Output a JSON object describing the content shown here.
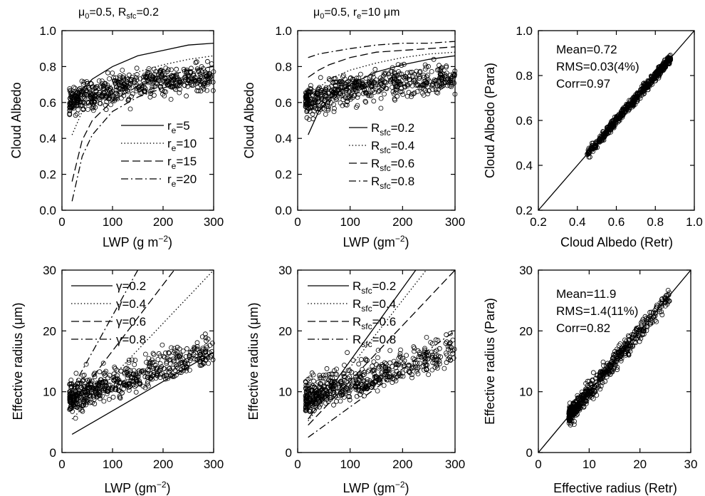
{
  "chart_data": [
    {
      "id": "a",
      "type": "scatter",
      "title": "μ0=0.5, Rsfc=0.2",
      "title_parts": {
        "mu_label": "μ",
        "mu_sub": "0",
        "mu_value": "=0.5, R",
        "r_sub": "sfc",
        "r_value": "=0.2"
      },
      "xlabel": "LWP (g m-2)",
      "xlabel_parts": {
        "text": "LWP (g m",
        "sup": "−2",
        "close": ")"
      },
      "ylabel": "Cloud Albedo",
      "xlim": [
        0,
        300
      ],
      "ylim": [
        0.0,
        1.0
      ],
      "xticks": [
        "0",
        "100",
        "200",
        "300"
      ],
      "yticks": [
        "0.0",
        "0.2",
        "0.4",
        "0.6",
        "0.8",
        "1.0"
      ],
      "legend_position": "lower-right",
      "legend": [
        {
          "prefix": "r",
          "sub": "e",
          "suffix": "=5",
          "style": "solid"
        },
        {
          "prefix": "r",
          "sub": "e",
          "suffix": "=10",
          "style": "dotted"
        },
        {
          "prefix": "r",
          "sub": "e",
          "suffix": "=15",
          "style": "dashed"
        },
        {
          "prefix": "r",
          "sub": "e",
          "suffix": "=20",
          "style": "dashdot"
        }
      ],
      "scatter_description": "LWP vs retrieved cloud albedo, approx 600 points, albedo 0.38-0.88",
      "series": [
        {
          "name": "re=5",
          "style": "solid",
          "x": [
            20,
            40,
            60,
            100,
            150,
            200,
            250,
            300
          ],
          "y": [
            0.56,
            0.67,
            0.73,
            0.8,
            0.86,
            0.89,
            0.92,
            0.93
          ]
        },
        {
          "name": "re=10",
          "style": "dotted",
          "x": [
            20,
            40,
            60,
            100,
            150,
            200,
            250,
            300
          ],
          "y": [
            0.42,
            0.55,
            0.62,
            0.7,
            0.77,
            0.81,
            0.84,
            0.86
          ]
        },
        {
          "name": "re=15",
          "style": "dashed",
          "x": [
            20,
            40,
            60,
            100,
            150,
            200,
            250,
            300
          ],
          "y": [
            0.16,
            0.39,
            0.5,
            0.61,
            0.69,
            0.74,
            0.78,
            0.8
          ]
        },
        {
          "name": "re=20",
          "style": "dashdot",
          "x": [
            20,
            40,
            60,
            100,
            150,
            200,
            250,
            300
          ],
          "y": [
            0.05,
            0.3,
            0.42,
            0.55,
            0.63,
            0.68,
            0.72,
            0.75
          ]
        }
      ]
    },
    {
      "id": "b",
      "type": "scatter",
      "title": "μ0=0.5, re=10 μm",
      "title_parts": {
        "mu_label": "μ",
        "mu_sub": "0",
        "mu_value": "=0.5, r",
        "r_sub": "e",
        "r_value": "=10 μm"
      },
      "xlabel": "LWP (gm-2)",
      "xlabel_parts": {
        "text": "LWP (gm",
        "sup": "−2",
        "close": ")"
      },
      "ylabel": "Cloud Albedo",
      "xlim": [
        0,
        300
      ],
      "ylim": [
        0.0,
        1.0
      ],
      "xticks": [
        "0",
        "100",
        "200",
        "300"
      ],
      "yticks": [
        "0.0",
        "0.2",
        "0.4",
        "0.6",
        "0.8",
        "1.0"
      ],
      "legend_position": "lower-right",
      "legend": [
        {
          "prefix": "R",
          "sub": "sfc",
          "suffix": "=0.2",
          "style": "solid"
        },
        {
          "prefix": "R",
          "sub": "sfc",
          "suffix": "=0.4",
          "style": "dotted"
        },
        {
          "prefix": "R",
          "sub": "sfc",
          "suffix": "=0.6",
          "style": "dashed"
        },
        {
          "prefix": "R",
          "sub": "sfc",
          "suffix": "=0.8",
          "style": "dashdot"
        }
      ],
      "scatter_description": "LWP vs retrieved cloud albedo, approx 600 points, albedo 0.38-0.88",
      "series": [
        {
          "name": "Rsfc=0.2",
          "style": "solid",
          "x": [
            20,
            40,
            60,
            100,
            150,
            200,
            250,
            300
          ],
          "y": [
            0.42,
            0.55,
            0.62,
            0.7,
            0.77,
            0.81,
            0.84,
            0.86
          ]
        },
        {
          "name": "Rsfc=0.4",
          "style": "dotted",
          "x": [
            20,
            40,
            60,
            100,
            150,
            200,
            250,
            300
          ],
          "y": [
            0.6,
            0.68,
            0.73,
            0.78,
            0.82,
            0.85,
            0.87,
            0.88
          ]
        },
        {
          "name": "Rsfc=0.6",
          "style": "dashed",
          "x": [
            20,
            40,
            60,
            100,
            150,
            200,
            250,
            300
          ],
          "y": [
            0.74,
            0.78,
            0.81,
            0.85,
            0.88,
            0.89,
            0.9,
            0.91
          ]
        },
        {
          "name": "Rsfc=0.8",
          "style": "dashdot",
          "x": [
            20,
            40,
            60,
            100,
            150,
            200,
            250,
            300
          ],
          "y": [
            0.85,
            0.87,
            0.88,
            0.9,
            0.92,
            0.93,
            0.93,
            0.94
          ]
        }
      ]
    },
    {
      "id": "c",
      "type": "scatter",
      "title": "",
      "xlabel": "Cloud Albedo (Retr)",
      "ylabel": "Cloud Albedo (Para)",
      "xlim": [
        0.2,
        1.0
      ],
      "ylim": [
        0.2,
        1.0
      ],
      "xticks": [
        "0.2",
        "0.4",
        "0.6",
        "0.8",
        "1.0"
      ],
      "yticks": [
        "0.2",
        "0.4",
        "0.6",
        "0.8",
        "1.0"
      ],
      "annotations": [
        "Mean=0.72",
        "RMS=0.03(4%)",
        "Corr=0.97"
      ],
      "reference_line": "1:1",
      "scatter_description": "Parameterized vs retrieved albedo along 1:1 line, 0.31-0.88"
    },
    {
      "id": "d",
      "type": "scatter",
      "title": "",
      "xlabel": "LWP (gm-2)",
      "xlabel_parts": {
        "text": "LWP (gm",
        "sup": "−2",
        "close": ")"
      },
      "ylabel": "Effective radius (μm)",
      "xlim": [
        0,
        300
      ],
      "ylim": [
        0,
        30
      ],
      "xticks": [
        "0",
        "100",
        "200",
        "300"
      ],
      "yticks": [
        "0",
        "10",
        "20",
        "30"
      ],
      "legend_position": "upper-left",
      "legend": [
        {
          "prefix": "γ",
          "sub": "",
          "suffix": "=0.2",
          "style": "solid"
        },
        {
          "prefix": "γ",
          "sub": "",
          "suffix": "=0.4",
          "style": "dotted"
        },
        {
          "prefix": "γ",
          "sub": "",
          "suffix": "=0.6",
          "style": "dashed"
        },
        {
          "prefix": "γ",
          "sub": "",
          "suffix": "=0.8",
          "style": "dashdot"
        }
      ],
      "scatter_description": "LWP vs effective radius, approx 600 points, radius 5-24 μm",
      "series": [
        {
          "name": "γ=0.2",
          "style": "solid",
          "x": [
            20,
            300
          ],
          "y": [
            3,
            16.5
          ]
        },
        {
          "name": "γ=0.4",
          "style": "dotted",
          "x": [
            20,
            300
          ],
          "y": [
            5.5,
            30.5
          ]
        },
        {
          "name": "γ=0.6",
          "style": "dashed",
          "x": [
            20,
            222
          ],
          "y": [
            8,
            30
          ]
        },
        {
          "name": "γ=0.8",
          "style": "dashdot",
          "x": [
            20,
            150
          ],
          "y": [
            10.5,
            30
          ]
        }
      ]
    },
    {
      "id": "e",
      "type": "scatter",
      "title": "",
      "xlabel": "LWP (gm-2)",
      "xlabel_parts": {
        "text": "LWP (gm",
        "sup": "−2",
        "close": ")"
      },
      "ylabel": "Effective radius (μm)",
      "xlim": [
        0,
        300
      ],
      "ylim": [
        0,
        30
      ],
      "xticks": [
        "0",
        "100",
        "200",
        "300"
      ],
      "yticks": [
        "0",
        "10",
        "20",
        "30"
      ],
      "legend_position": "upper-left",
      "legend": [
        {
          "prefix": "R",
          "sub": "sfc",
          "suffix": "=0.2",
          "style": "solid"
        },
        {
          "prefix": "R",
          "sub": "sfc",
          "suffix": "=0.4",
          "style": "dotted"
        },
        {
          "prefix": "R",
          "sub": "sfc",
          "suffix": "=0.6",
          "style": "dashed"
        },
        {
          "prefix": "R",
          "sub": "sfc",
          "suffix": "=0.8",
          "style": "dashdot"
        }
      ],
      "scatter_description": "LWP vs effective radius, approx 600 points, radius 5-24 μm",
      "series": [
        {
          "name": "Rsfc=0.2",
          "style": "solid",
          "x": [
            20,
            225
          ],
          "y": [
            5.5,
            30
          ]
        },
        {
          "name": "Rsfc=0.4",
          "style": "dotted",
          "x": [
            20,
            245
          ],
          "y": [
            5.2,
            30
          ]
        },
        {
          "name": "Rsfc=0.6",
          "style": "dashed",
          "x": [
            20,
            300
          ],
          "y": [
            4.5,
            30
          ]
        },
        {
          "name": "Rsfc=0.8",
          "style": "dashdot",
          "x": [
            20,
            300
          ],
          "y": [
            2.5,
            20
          ]
        }
      ]
    },
    {
      "id": "f",
      "type": "scatter",
      "title": "",
      "xlabel": "Effective radius (Retr)",
      "ylabel": "Effective radius (Para)",
      "xlim": [
        0,
        30
      ],
      "ylim": [
        0,
        30
      ],
      "xticks": [
        "0",
        "10",
        "20",
        "30"
      ],
      "yticks": [
        "0",
        "10",
        "20",
        "30"
      ],
      "annotations": [
        "Mean=11.9",
        "RMS=1.4(11%)",
        "Corr=0.82"
      ],
      "reference_line": "1:1",
      "scatter_description": "Parameterized vs retrieved effective radius along 1:1 line, 5-27 μm"
    }
  ]
}
